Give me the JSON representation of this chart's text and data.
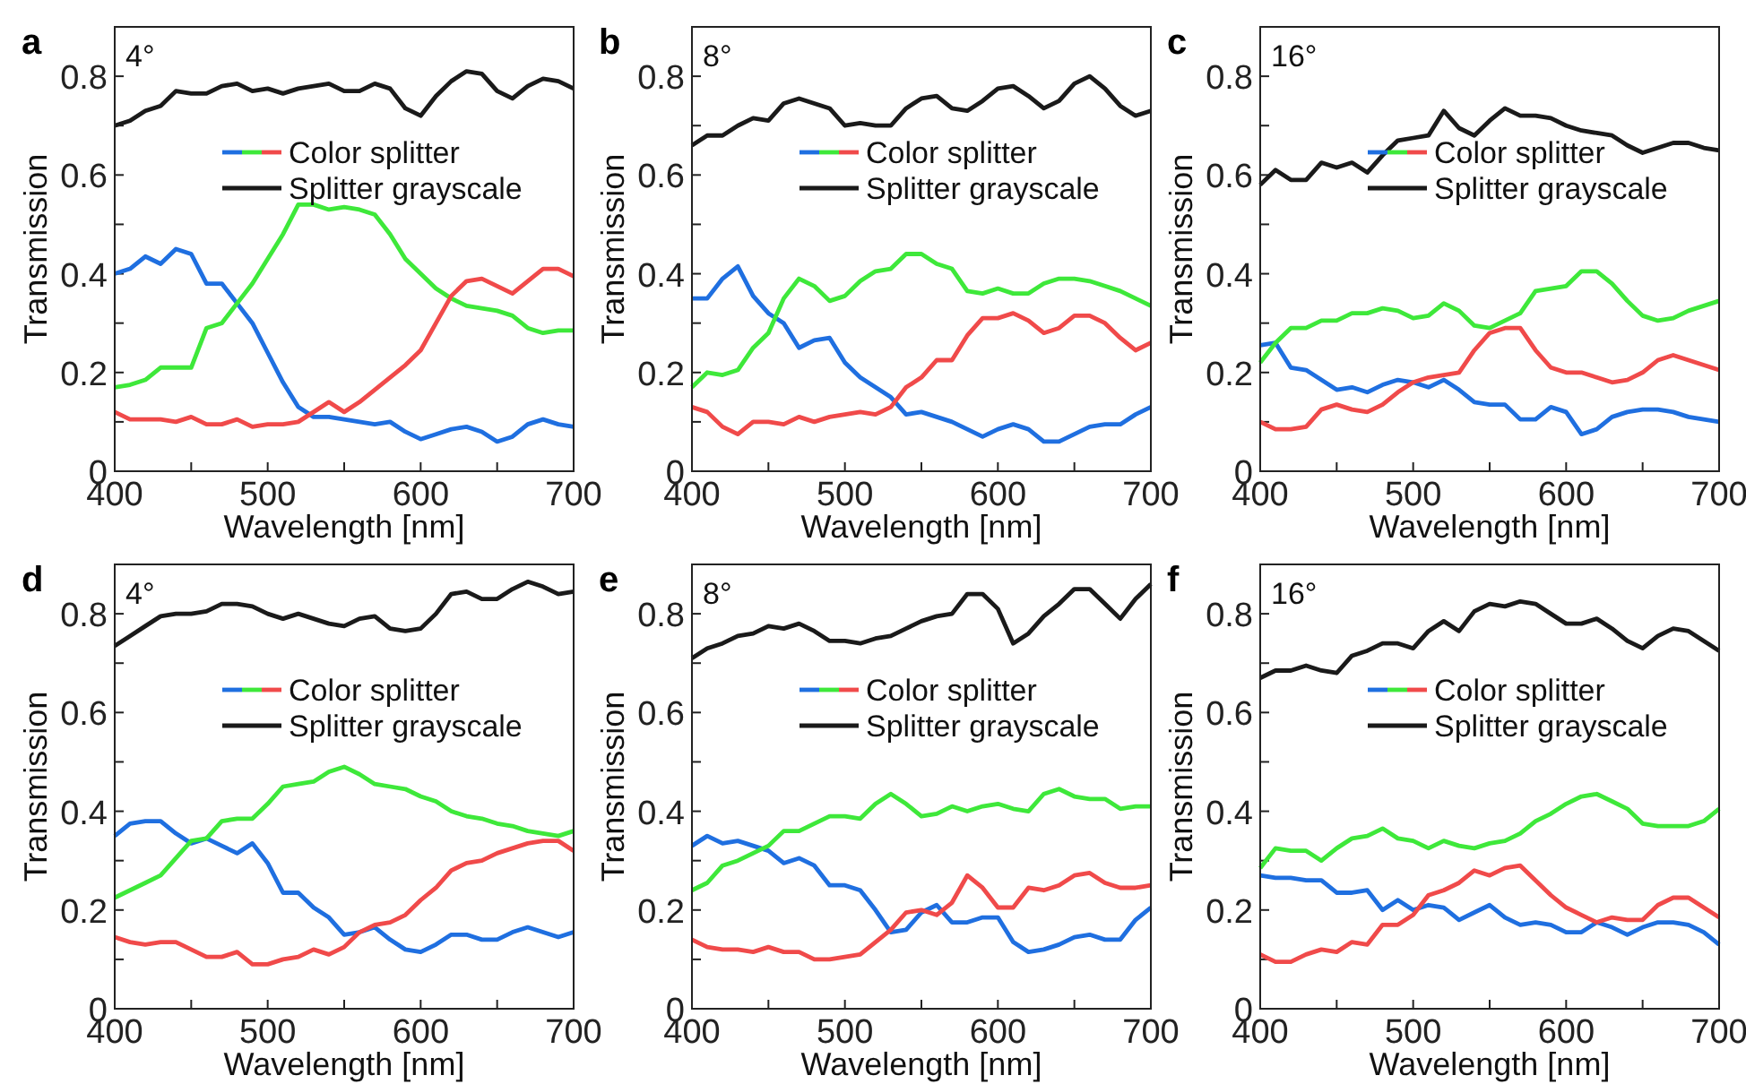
{
  "chart_data": [
    {
      "type": "line",
      "title": "a",
      "annotations": [
        "4°"
      ],
      "xlabel": "Wavelength [nm]",
      "ylabel": "Transmission",
      "x": [
        400,
        410,
        420,
        430,
        440,
        450,
        460,
        470,
        480,
        490,
        500,
        510,
        520,
        530,
        540,
        550,
        560,
        570,
        580,
        590,
        600,
        610,
        620,
        630,
        640,
        650,
        660,
        670,
        680,
        690,
        700
      ],
      "xlim": [
        400,
        700
      ],
      "xticks": [
        400,
        {
          "value": 450,
          "label": null
        },
        500,
        {
          "value": 550,
          "label": null
        },
        600,
        {
          "value": 650,
          "label": null
        },
        700
      ],
      "ylim": [
        0,
        0.9
      ],
      "yticks": [
        0,
        {
          "value": 0.1,
          "label": null
        },
        0.2,
        {
          "value": 0.3,
          "label": null
        },
        0.4,
        {
          "value": 0.5,
          "label": null
        },
        0.6,
        {
          "value": 0.7,
          "label": null
        },
        0.8
      ],
      "legend": "right",
      "series": [
        {
          "color": "#1f6fe0",
          "values": [
            0.4,
            0.41,
            0.435,
            0.42,
            0.45,
            0.44,
            0.38,
            0.38,
            0.34,
            0.3,
            0.24,
            0.18,
            0.13,
            0.11,
            0.11,
            0.105,
            0.1,
            0.095,
            0.1,
            0.08,
            0.065,
            0.075,
            0.085,
            0.09,
            0.08,
            0.06,
            0.07,
            0.095,
            0.105,
            0.095,
            0.09
          ]
        },
        {
          "name": "Color splitter",
          "color": "#3ee83a",
          "values": [
            0.17,
            0.175,
            0.185,
            0.21,
            0.21,
            0.21,
            0.29,
            0.3,
            0.34,
            0.38,
            0.43,
            0.48,
            0.54,
            0.54,
            0.53,
            0.535,
            0.53,
            0.52,
            0.48,
            0.43,
            0.4,
            0.37,
            0.35,
            0.335,
            0.33,
            0.325,
            0.315,
            0.29,
            0.28,
            0.285,
            0.285
          ]
        },
        {
          "color": "#f04a4a",
          "values": [
            0.12,
            0.105,
            0.105,
            0.105,
            0.1,
            0.11,
            0.095,
            0.095,
            0.105,
            0.09,
            0.095,
            0.095,
            0.1,
            0.12,
            0.14,
            0.12,
            0.14,
            0.165,
            0.19,
            0.215,
            0.245,
            0.3,
            0.355,
            0.385,
            0.39,
            0.375,
            0.36,
            0.385,
            0.41,
            0.41,
            0.395
          ]
        },
        {
          "name": "Splitter grayscale",
          "color": "#1a1a1a",
          "values": [
            0.7,
            0.71,
            0.73,
            0.74,
            0.77,
            0.765,
            0.765,
            0.78,
            0.785,
            0.77,
            0.775,
            0.765,
            0.775,
            0.78,
            0.785,
            0.77,
            0.77,
            0.785,
            0.775,
            0.735,
            0.72,
            0.76,
            0.79,
            0.81,
            0.805,
            0.77,
            0.755,
            0.78,
            0.795,
            0.79,
            0.775
          ]
        }
      ]
    },
    {
      "type": "line",
      "title": "b",
      "annotations": [
        "8°"
      ],
      "xlabel": "Wavelength [nm]",
      "ylabel": "Transmission",
      "x": [
        400,
        410,
        420,
        430,
        440,
        450,
        460,
        470,
        480,
        490,
        500,
        510,
        520,
        530,
        540,
        550,
        560,
        570,
        580,
        590,
        600,
        610,
        620,
        630,
        640,
        650,
        660,
        670,
        680,
        690,
        700
      ],
      "xlim": [
        400,
        700
      ],
      "xticks": [
        400,
        {
          "value": 450,
          "label": null
        },
        500,
        {
          "value": 550,
          "label": null
        },
        600,
        {
          "value": 650,
          "label": null
        },
        700
      ],
      "ylim": [
        0,
        0.9
      ],
      "yticks": [
        0,
        {
          "value": 0.1,
          "label": null
        },
        0.2,
        {
          "value": 0.3,
          "label": null
        },
        0.4,
        {
          "value": 0.5,
          "label": null
        },
        0.6,
        {
          "value": 0.7,
          "label": null
        },
        0.8
      ],
      "legend": "right",
      "series": [
        {
          "color": "#1f6fe0",
          "values": [
            0.35,
            0.35,
            0.39,
            0.415,
            0.355,
            0.32,
            0.3,
            0.25,
            0.265,
            0.27,
            0.22,
            0.19,
            0.17,
            0.15,
            0.115,
            0.12,
            0.11,
            0.1,
            0.085,
            0.07,
            0.085,
            0.095,
            0.085,
            0.06,
            0.06,
            0.075,
            0.09,
            0.095,
            0.095,
            0.115,
            0.13
          ]
        },
        {
          "name": "Color splitter",
          "color": "#3ee83a",
          "values": [
            0.17,
            0.2,
            0.195,
            0.205,
            0.25,
            0.28,
            0.35,
            0.39,
            0.375,
            0.345,
            0.355,
            0.385,
            0.405,
            0.41,
            0.44,
            0.44,
            0.42,
            0.41,
            0.365,
            0.36,
            0.37,
            0.36,
            0.36,
            0.38,
            0.39,
            0.39,
            0.385,
            0.375,
            0.365,
            0.35,
            0.335
          ]
        },
        {
          "color": "#f04a4a",
          "values": [
            0.13,
            0.12,
            0.09,
            0.075,
            0.1,
            0.1,
            0.095,
            0.11,
            0.1,
            0.11,
            0.115,
            0.12,
            0.115,
            0.13,
            0.17,
            0.19,
            0.225,
            0.225,
            0.275,
            0.31,
            0.31,
            0.32,
            0.305,
            0.28,
            0.29,
            0.315,
            0.315,
            0.3,
            0.27,
            0.245,
            0.26
          ]
        },
        {
          "name": "Splitter grayscale",
          "color": "#1a1a1a",
          "values": [
            0.66,
            0.68,
            0.68,
            0.7,
            0.715,
            0.71,
            0.745,
            0.755,
            0.745,
            0.735,
            0.7,
            0.705,
            0.7,
            0.7,
            0.735,
            0.755,
            0.76,
            0.735,
            0.73,
            0.75,
            0.775,
            0.78,
            0.76,
            0.735,
            0.75,
            0.785,
            0.8,
            0.775,
            0.74,
            0.72,
            0.73
          ]
        }
      ]
    },
    {
      "type": "line",
      "title": "c",
      "annotations": [
        "16°"
      ],
      "xlabel": "Wavelength [nm]",
      "ylabel": "Transmission",
      "x": [
        400,
        410,
        420,
        430,
        440,
        450,
        460,
        470,
        480,
        490,
        500,
        510,
        520,
        530,
        540,
        550,
        560,
        570,
        580,
        590,
        600,
        610,
        620,
        630,
        640,
        650,
        660,
        670,
        680,
        690,
        700
      ],
      "xlim": [
        400,
        700
      ],
      "xticks": [
        400,
        {
          "value": 450,
          "label": null
        },
        500,
        {
          "value": 550,
          "label": null
        },
        600,
        {
          "value": 650,
          "label": null
        },
        700
      ],
      "ylim": [
        0,
        0.9
      ],
      "yticks": [
        0,
        {
          "value": 0.1,
          "label": null
        },
        0.2,
        {
          "value": 0.3,
          "label": null
        },
        0.4,
        {
          "value": 0.5,
          "label": null
        },
        0.6,
        {
          "value": 0.7,
          "label": null
        },
        0.8
      ],
      "legend": "right",
      "series": [
        {
          "color": "#1f6fe0",
          "values": [
            0.255,
            0.26,
            0.21,
            0.205,
            0.185,
            0.165,
            0.17,
            0.16,
            0.175,
            0.185,
            0.18,
            0.17,
            0.185,
            0.165,
            0.14,
            0.135,
            0.135,
            0.105,
            0.105,
            0.13,
            0.12,
            0.075,
            0.085,
            0.11,
            0.12,
            0.125,
            0.125,
            0.12,
            0.11,
            0.105,
            0.1
          ]
        },
        {
          "name": "Color splitter",
          "color": "#3ee83a",
          "values": [
            0.22,
            0.26,
            0.29,
            0.29,
            0.305,
            0.305,
            0.32,
            0.32,
            0.33,
            0.325,
            0.31,
            0.315,
            0.34,
            0.325,
            0.295,
            0.29,
            0.305,
            0.32,
            0.365,
            0.37,
            0.375,
            0.405,
            0.405,
            0.38,
            0.345,
            0.315,
            0.305,
            0.31,
            0.325,
            0.335,
            0.345
          ]
        },
        {
          "color": "#f04a4a",
          "values": [
            0.1,
            0.085,
            0.085,
            0.09,
            0.125,
            0.135,
            0.125,
            0.12,
            0.135,
            0.16,
            0.18,
            0.19,
            0.195,
            0.2,
            0.245,
            0.28,
            0.29,
            0.29,
            0.245,
            0.21,
            0.2,
            0.2,
            0.19,
            0.18,
            0.185,
            0.2,
            0.225,
            0.235,
            0.225,
            0.215,
            0.205
          ]
        },
        {
          "name": "Splitter grayscale",
          "color": "#1a1a1a",
          "values": [
            0.58,
            0.61,
            0.59,
            0.59,
            0.625,
            0.615,
            0.625,
            0.605,
            0.64,
            0.67,
            0.675,
            0.68,
            0.73,
            0.695,
            0.68,
            0.71,
            0.735,
            0.72,
            0.72,
            0.715,
            0.7,
            0.69,
            0.685,
            0.68,
            0.66,
            0.645,
            0.655,
            0.665,
            0.665,
            0.655,
            0.65
          ]
        }
      ]
    },
    {
      "type": "line",
      "title": "d",
      "annotations": [
        "4°"
      ],
      "xlabel": "Wavelength [nm]",
      "ylabel": "Transmission",
      "x": [
        400,
        410,
        420,
        430,
        440,
        450,
        460,
        470,
        480,
        490,
        500,
        510,
        520,
        530,
        540,
        550,
        560,
        570,
        580,
        590,
        600,
        610,
        620,
        630,
        640,
        650,
        660,
        670,
        680,
        690,
        700
      ],
      "xlim": [
        400,
        700
      ],
      "xticks": [
        400,
        {
          "value": 450,
          "label": null
        },
        500,
        {
          "value": 550,
          "label": null
        },
        600,
        {
          "value": 650,
          "label": null
        },
        700
      ],
      "ylim": [
        0,
        0.9
      ],
      "yticks": [
        0,
        {
          "value": 0.1,
          "label": null
        },
        0.2,
        {
          "value": 0.3,
          "label": null
        },
        0.4,
        {
          "value": 0.5,
          "label": null
        },
        0.6,
        {
          "value": 0.7,
          "label": null
        },
        0.8
      ],
      "legend": "right",
      "series": [
        {
          "color": "#1f6fe0",
          "values": [
            0.35,
            0.375,
            0.38,
            0.38,
            0.355,
            0.335,
            0.345,
            0.33,
            0.315,
            0.335,
            0.295,
            0.235,
            0.235,
            0.205,
            0.185,
            0.15,
            0.155,
            0.165,
            0.14,
            0.12,
            0.115,
            0.13,
            0.15,
            0.15,
            0.14,
            0.14,
            0.155,
            0.165,
            0.155,
            0.145,
            0.155
          ]
        },
        {
          "name": "Color splitter",
          "color": "#3ee83a",
          "values": [
            0.225,
            0.24,
            0.255,
            0.27,
            0.305,
            0.34,
            0.345,
            0.38,
            0.385,
            0.385,
            0.415,
            0.45,
            0.455,
            0.46,
            0.48,
            0.49,
            0.475,
            0.455,
            0.45,
            0.445,
            0.43,
            0.42,
            0.4,
            0.39,
            0.385,
            0.375,
            0.37,
            0.36,
            0.355,
            0.35,
            0.36
          ]
        },
        {
          "color": "#f04a4a",
          "values": [
            0.145,
            0.135,
            0.13,
            0.135,
            0.135,
            0.12,
            0.105,
            0.105,
            0.115,
            0.09,
            0.09,
            0.1,
            0.105,
            0.12,
            0.11,
            0.125,
            0.155,
            0.17,
            0.175,
            0.19,
            0.22,
            0.245,
            0.28,
            0.295,
            0.3,
            0.315,
            0.325,
            0.335,
            0.34,
            0.34,
            0.32
          ]
        },
        {
          "name": "Splitter grayscale",
          "color": "#1a1a1a",
          "values": [
            0.735,
            0.755,
            0.775,
            0.795,
            0.8,
            0.8,
            0.805,
            0.82,
            0.82,
            0.815,
            0.8,
            0.79,
            0.8,
            0.79,
            0.78,
            0.775,
            0.79,
            0.795,
            0.77,
            0.765,
            0.77,
            0.8,
            0.84,
            0.845,
            0.83,
            0.83,
            0.85,
            0.865,
            0.855,
            0.84,
            0.845
          ]
        }
      ]
    },
    {
      "type": "line",
      "title": "e",
      "annotations": [
        "8°"
      ],
      "xlabel": "Wavelength [nm]",
      "ylabel": "Transmission",
      "x": [
        400,
        410,
        420,
        430,
        440,
        450,
        460,
        470,
        480,
        490,
        500,
        510,
        520,
        530,
        540,
        550,
        560,
        570,
        580,
        590,
        600,
        610,
        620,
        630,
        640,
        650,
        660,
        670,
        680,
        690,
        700
      ],
      "xlim": [
        400,
        700
      ],
      "xticks": [
        400,
        {
          "value": 450,
          "label": null
        },
        500,
        {
          "value": 550,
          "label": null
        },
        600,
        {
          "value": 650,
          "label": null
        },
        700
      ],
      "ylim": [
        0,
        0.9
      ],
      "yticks": [
        0,
        {
          "value": 0.1,
          "label": null
        },
        0.2,
        {
          "value": 0.3,
          "label": null
        },
        0.4,
        {
          "value": 0.5,
          "label": null
        },
        0.6,
        {
          "value": 0.7,
          "label": null
        },
        0.8
      ],
      "legend": "right",
      "series": [
        {
          "color": "#1f6fe0",
          "values": [
            0.33,
            0.35,
            0.335,
            0.34,
            0.33,
            0.32,
            0.295,
            0.305,
            0.29,
            0.25,
            0.25,
            0.24,
            0.2,
            0.155,
            0.16,
            0.195,
            0.21,
            0.175,
            0.175,
            0.185,
            0.185,
            0.135,
            0.115,
            0.12,
            0.13,
            0.145,
            0.15,
            0.14,
            0.14,
            0.18,
            0.205
          ]
        },
        {
          "name": "Color splitter",
          "color": "#3ee83a",
          "values": [
            0.24,
            0.255,
            0.29,
            0.3,
            0.315,
            0.33,
            0.36,
            0.36,
            0.375,
            0.39,
            0.39,
            0.385,
            0.415,
            0.435,
            0.415,
            0.39,
            0.395,
            0.41,
            0.4,
            0.41,
            0.415,
            0.405,
            0.4,
            0.435,
            0.445,
            0.43,
            0.425,
            0.425,
            0.405,
            0.41,
            0.41
          ]
        },
        {
          "color": "#f04a4a",
          "values": [
            0.14,
            0.125,
            0.12,
            0.12,
            0.115,
            0.125,
            0.115,
            0.115,
            0.1,
            0.1,
            0.105,
            0.11,
            0.135,
            0.16,
            0.195,
            0.2,
            0.19,
            0.215,
            0.27,
            0.245,
            0.205,
            0.205,
            0.245,
            0.24,
            0.25,
            0.27,
            0.275,
            0.255,
            0.245,
            0.245,
            0.25
          ]
        },
        {
          "name": "Splitter grayscale",
          "color": "#1a1a1a",
          "values": [
            0.71,
            0.73,
            0.74,
            0.755,
            0.76,
            0.775,
            0.77,
            0.78,
            0.765,
            0.745,
            0.745,
            0.74,
            0.75,
            0.755,
            0.77,
            0.785,
            0.795,
            0.8,
            0.84,
            0.84,
            0.81,
            0.74,
            0.76,
            0.795,
            0.82,
            0.85,
            0.85,
            0.82,
            0.79,
            0.83,
            0.86
          ]
        }
      ]
    },
    {
      "type": "line",
      "title": "f",
      "annotations": [
        "16°"
      ],
      "xlabel": "Wavelength [nm]",
      "ylabel": "Transmission",
      "x": [
        400,
        410,
        420,
        430,
        440,
        450,
        460,
        470,
        480,
        490,
        500,
        510,
        520,
        530,
        540,
        550,
        560,
        570,
        580,
        590,
        600,
        610,
        620,
        630,
        640,
        650,
        660,
        670,
        680,
        690,
        700
      ],
      "xlim": [
        400,
        700
      ],
      "xticks": [
        400,
        {
          "value": 450,
          "label": null
        },
        500,
        {
          "value": 550,
          "label": null
        },
        600,
        {
          "value": 650,
          "label": null
        },
        700
      ],
      "ylim": [
        0,
        0.9
      ],
      "yticks": [
        0,
        {
          "value": 0.1,
          "label": null
        },
        0.2,
        {
          "value": 0.3,
          "label": null
        },
        0.4,
        {
          "value": 0.5,
          "label": null
        },
        0.6,
        {
          "value": 0.7,
          "label": null
        },
        0.8
      ],
      "legend": "right",
      "series": [
        {
          "color": "#1f6fe0",
          "values": [
            0.27,
            0.265,
            0.265,
            0.26,
            0.26,
            0.235,
            0.235,
            0.24,
            0.2,
            0.22,
            0.2,
            0.21,
            0.205,
            0.18,
            0.195,
            0.21,
            0.185,
            0.17,
            0.175,
            0.17,
            0.155,
            0.155,
            0.175,
            0.165,
            0.15,
            0.165,
            0.175,
            0.175,
            0.17,
            0.155,
            0.13
          ]
        },
        {
          "name": "Color splitter",
          "color": "#3ee83a",
          "values": [
            0.285,
            0.325,
            0.32,
            0.32,
            0.3,
            0.325,
            0.345,
            0.35,
            0.365,
            0.345,
            0.34,
            0.325,
            0.34,
            0.33,
            0.325,
            0.335,
            0.34,
            0.355,
            0.38,
            0.395,
            0.415,
            0.43,
            0.435,
            0.42,
            0.405,
            0.375,
            0.37,
            0.37,
            0.37,
            0.38,
            0.405
          ]
        },
        {
          "color": "#f04a4a",
          "values": [
            0.11,
            0.095,
            0.095,
            0.11,
            0.12,
            0.115,
            0.135,
            0.13,
            0.17,
            0.17,
            0.19,
            0.23,
            0.24,
            0.255,
            0.28,
            0.27,
            0.285,
            0.29,
            0.26,
            0.23,
            0.205,
            0.19,
            0.175,
            0.185,
            0.18,
            0.18,
            0.21,
            0.225,
            0.225,
            0.205,
            0.185
          ]
        },
        {
          "name": "Splitter grayscale",
          "color": "#1a1a1a",
          "values": [
            0.67,
            0.685,
            0.685,
            0.695,
            0.685,
            0.68,
            0.715,
            0.725,
            0.74,
            0.74,
            0.73,
            0.765,
            0.785,
            0.765,
            0.805,
            0.82,
            0.815,
            0.825,
            0.82,
            0.8,
            0.78,
            0.78,
            0.79,
            0.77,
            0.745,
            0.73,
            0.755,
            0.77,
            0.765,
            0.745,
            0.725
          ]
        }
      ]
    }
  ]
}
